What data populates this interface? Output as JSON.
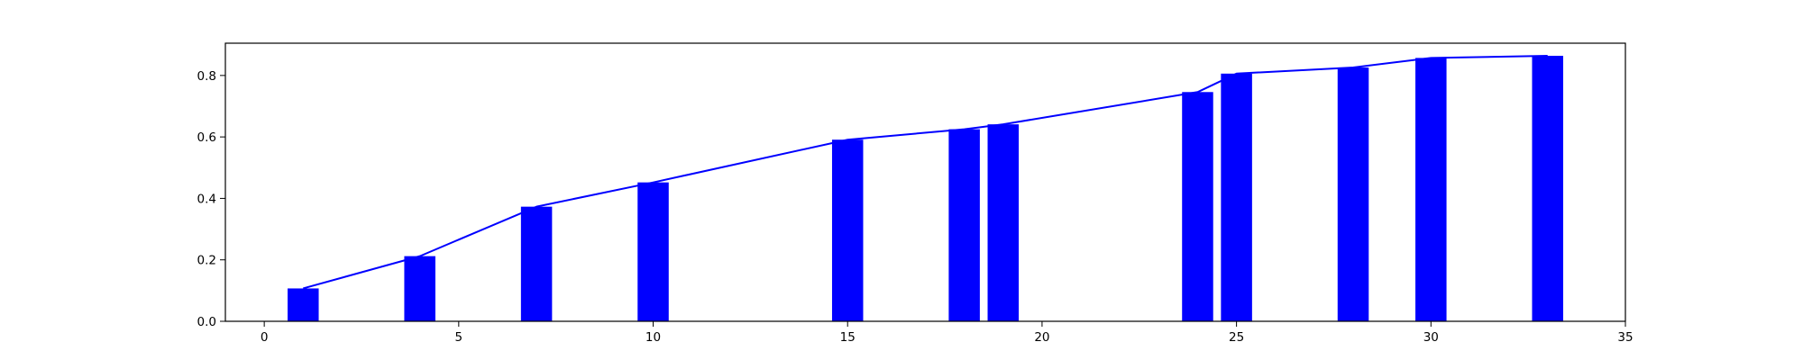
{
  "chart_data": {
    "type": "bar",
    "title": "",
    "xlabel": "",
    "ylabel": "",
    "xlim": [
      -1,
      35
    ],
    "ylim": [
      0,
      0.905
    ],
    "xticks": [
      0,
      5,
      10,
      15,
      20,
      25,
      30,
      35
    ],
    "yticks": [
      0.0,
      0.2,
      0.4,
      0.6,
      0.8
    ],
    "xtick_labels": [
      "0",
      "5",
      "10",
      "15",
      "20",
      "25",
      "30",
      "35"
    ],
    "ytick_labels": [
      "0.0",
      "0.2",
      "0.4",
      "0.6",
      "0.8"
    ],
    "grid": false,
    "bar_color": "#0000ff",
    "line_color": "#0000ff",
    "bar_width": 0.8,
    "series": [
      {
        "type": "bar",
        "x": [
          1,
          4,
          7,
          10,
          15,
          18,
          19,
          24,
          25,
          28,
          30,
          33
        ],
        "values": [
          0.107,
          0.212,
          0.373,
          0.452,
          0.591,
          0.625,
          0.641,
          0.746,
          0.806,
          0.826,
          0.857,
          0.864
        ]
      },
      {
        "type": "line",
        "x": [
          1,
          4,
          7,
          10,
          15,
          18,
          19,
          24,
          25,
          28,
          30,
          33
        ],
        "values": [
          0.107,
          0.212,
          0.373,
          0.452,
          0.591,
          0.625,
          0.641,
          0.746,
          0.806,
          0.826,
          0.857,
          0.864
        ]
      }
    ]
  }
}
